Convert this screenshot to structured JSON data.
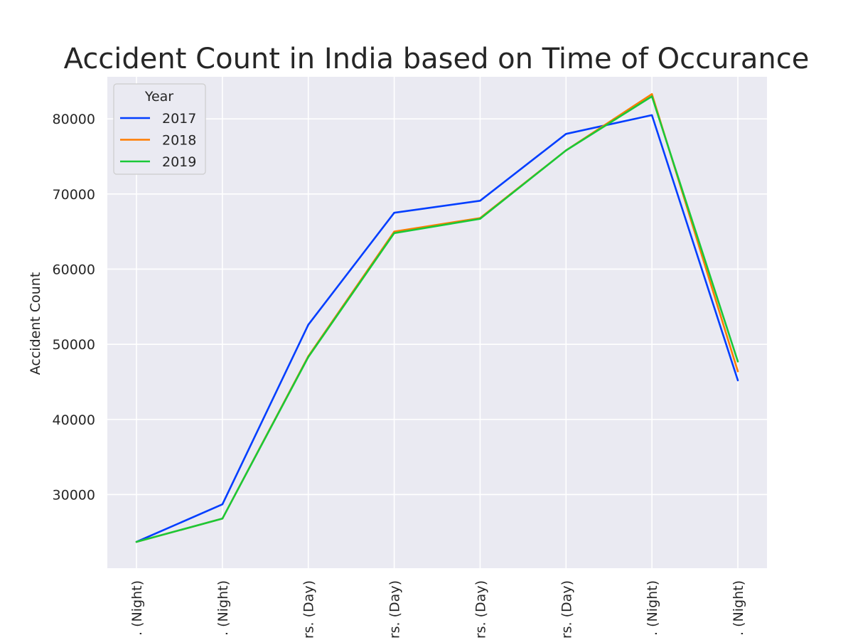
{
  "chart_data": {
    "type": "line",
    "title": "Accident Count in India based on Time of Occurance",
    "xlabel": "",
    "ylabel": "Accident Count",
    "categories": [
      ". (Night)",
      ". (Night)",
      "rs. (Day)",
      "rs. (Day)",
      "rs. (Day)",
      "rs. (Day)",
      ". (Night)",
      ". (Night)"
    ],
    "y_ticks": [
      30000,
      40000,
      50000,
      60000,
      70000,
      80000
    ],
    "ylim": [
      20200,
      85600
    ],
    "grid": true,
    "legend": {
      "title": "Year",
      "position": "top-left"
    },
    "series": [
      {
        "name": "2017",
        "color": "#023eff",
        "values": [
          23700,
          28700,
          52600,
          67500,
          69100,
          78000,
          80500,
          45200
        ]
      },
      {
        "name": "2018",
        "color": "#ff7c00",
        "values": [
          23700,
          26800,
          48400,
          65000,
          66800,
          75800,
          83300,
          46400
        ]
      },
      {
        "name": "2019",
        "color": "#1ac938",
        "values": [
          23700,
          26800,
          48300,
          64800,
          66700,
          75800,
          83000,
          47700
        ]
      }
    ]
  }
}
